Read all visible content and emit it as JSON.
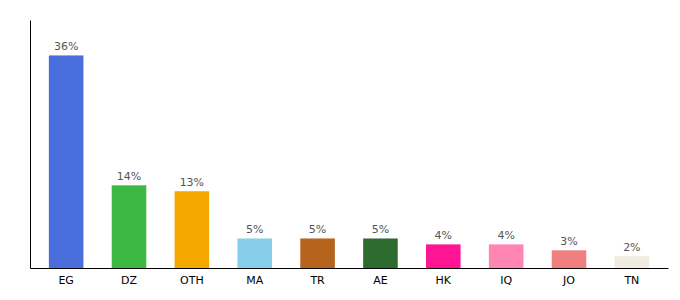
{
  "chart_data": {
    "type": "bar",
    "categories": [
      "EG",
      "DZ",
      "OTH",
      "MA",
      "TR",
      "AE",
      "HK",
      "IQ",
      "JO",
      "TN"
    ],
    "values": [
      36,
      14,
      13,
      5,
      5,
      5,
      4,
      4,
      3,
      2
    ],
    "value_labels": [
      "36%",
      "14%",
      "13%",
      "5%",
      "5%",
      "5%",
      "4%",
      "4%",
      "3%",
      "2%"
    ],
    "data_labels": true,
    "colors": [
      "#4a6fdc",
      "#3cb843",
      "#f5a800",
      "#87ceeb",
      "#b5631d",
      "#2e6b2e",
      "#ff1493",
      "#ff85b3",
      "#f08080",
      "#f0ede0"
    ],
    "ylim": [
      0,
      42
    ],
    "tick_labels": "x"
  }
}
